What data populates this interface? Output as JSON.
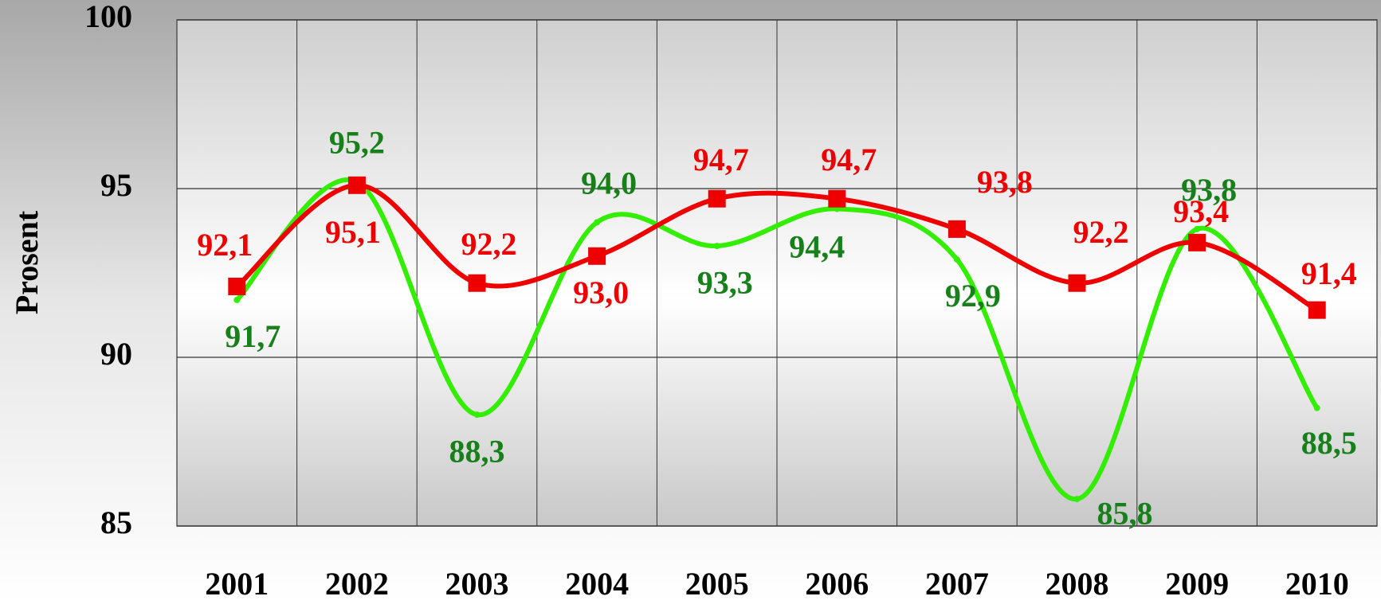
{
  "chart_data": {
    "type": "line",
    "y_label": "Prosent",
    "categories": [
      "2001",
      "2002",
      "2003",
      "2004",
      "2005",
      "2006",
      "2007",
      "2008",
      "2009",
      "2010"
    ],
    "series": [
      {
        "color": "#33ee00",
        "label_color": "#17801a",
        "values": [
          91.7,
          95.2,
          88.3,
          94.0,
          93.3,
          94.4,
          92.9,
          85.8,
          93.8,
          88.5
        ],
        "value_labels": [
          "91,7",
          "95,2",
          "88,3",
          "94,0",
          "93,3",
          "94,4",
          "92,9",
          "85,8",
          "93,8",
          "88,5"
        ]
      },
      {
        "color": "#ee0000",
        "label_color": "#ee0000",
        "marker": "square",
        "values": [
          92.1,
          95.1,
          92.2,
          93.0,
          94.7,
          94.7,
          93.8,
          92.2,
          93.4,
          91.4
        ],
        "value_labels": [
          "92,1",
          "95,1",
          "92,2",
          "93,0",
          "94,7",
          "94,7",
          "93,8",
          "92,2",
          "93,4",
          "91,4"
        ]
      }
    ],
    "ylim": [
      85,
      100
    ],
    "yticks": [
      85,
      90,
      95,
      100
    ],
    "grid": true
  }
}
